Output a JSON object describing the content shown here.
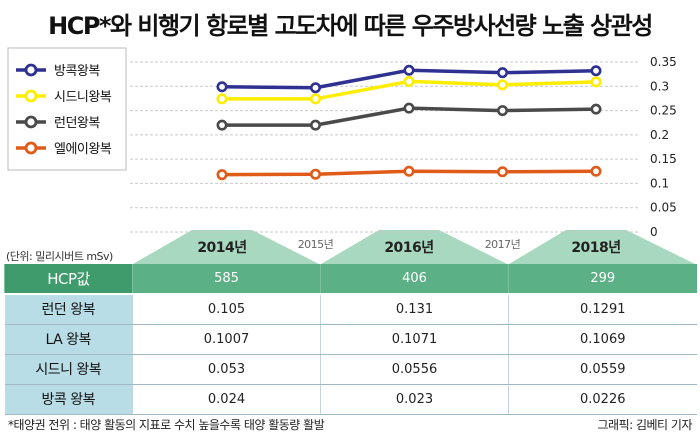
{
  "title": "HCP*와 비행기 항로별 고도차에 따른 우주방사선량 노출 상관성",
  "unit_note": "(단위: 밀리시버트 mSv)",
  "footnote": "*태양권 전위 : 태양 활동의 지표로 수치 높을수록 태양 활동량 활발",
  "credit": "그래픽: 김베티 기자",
  "colors": {
    "bangkok": "#2e3192",
    "sydney": "#ffed00",
    "london": "#4a4a4a",
    "la": "#e05a1a",
    "year_band": "#a8d8bf",
    "hcp_row": "#5cb085",
    "route_header": "#b9dde7"
  },
  "chart_data": {
    "type": "line",
    "x": [
      "2014년",
      "2015년",
      "2016년",
      "2017년",
      "2018년"
    ],
    "highlight_x": [
      "2014년",
      "2016년",
      "2018년"
    ],
    "ylim": [
      0,
      0.35
    ],
    "yticks": [
      "0",
      "0.05",
      "0.1",
      "0.15",
      "0.2",
      "0.25",
      "0.3",
      "0.35"
    ],
    "grid": true,
    "legend_position": "top-left",
    "series": [
      {
        "name": "방콕왕복",
        "color": "#2e3192",
        "values": [
          0.299,
          0.297,
          0.333,
          0.328,
          0.332
        ]
      },
      {
        "name": "시드니왕복",
        "color": "#ffed00",
        "values": [
          0.274,
          0.274,
          0.31,
          0.303,
          0.309
        ]
      },
      {
        "name": "런던왕복",
        "color": "#4a4a4a",
        "values": [
          0.22,
          0.22,
          0.255,
          0.25,
          0.253
        ]
      },
      {
        "name": "엘에이왕복",
        "color": "#e05a1a",
        "values": [
          0.118,
          0.119,
          0.125,
          0.124,
          0.125
        ]
      }
    ]
  },
  "table": {
    "columns": [
      "2014년",
      "2016년",
      "2018년"
    ],
    "rows": [
      {
        "label": "HCP값",
        "values": [
          "585",
          "406",
          "299"
        ],
        "kind": "hcp"
      },
      {
        "label": "런던 왕복",
        "values": [
          "0.105",
          "0.131",
          "0.1291"
        ]
      },
      {
        "label": "LA 왕복",
        "values": [
          "0.1007",
          "0.1071",
          "0.1069"
        ]
      },
      {
        "label": "시드니 왕복",
        "values": [
          "0.053",
          "0.0556",
          "0.0559"
        ]
      },
      {
        "label": "방콕 왕복",
        "values": [
          "0.024",
          "0.023",
          "0.0226"
        ]
      }
    ]
  }
}
